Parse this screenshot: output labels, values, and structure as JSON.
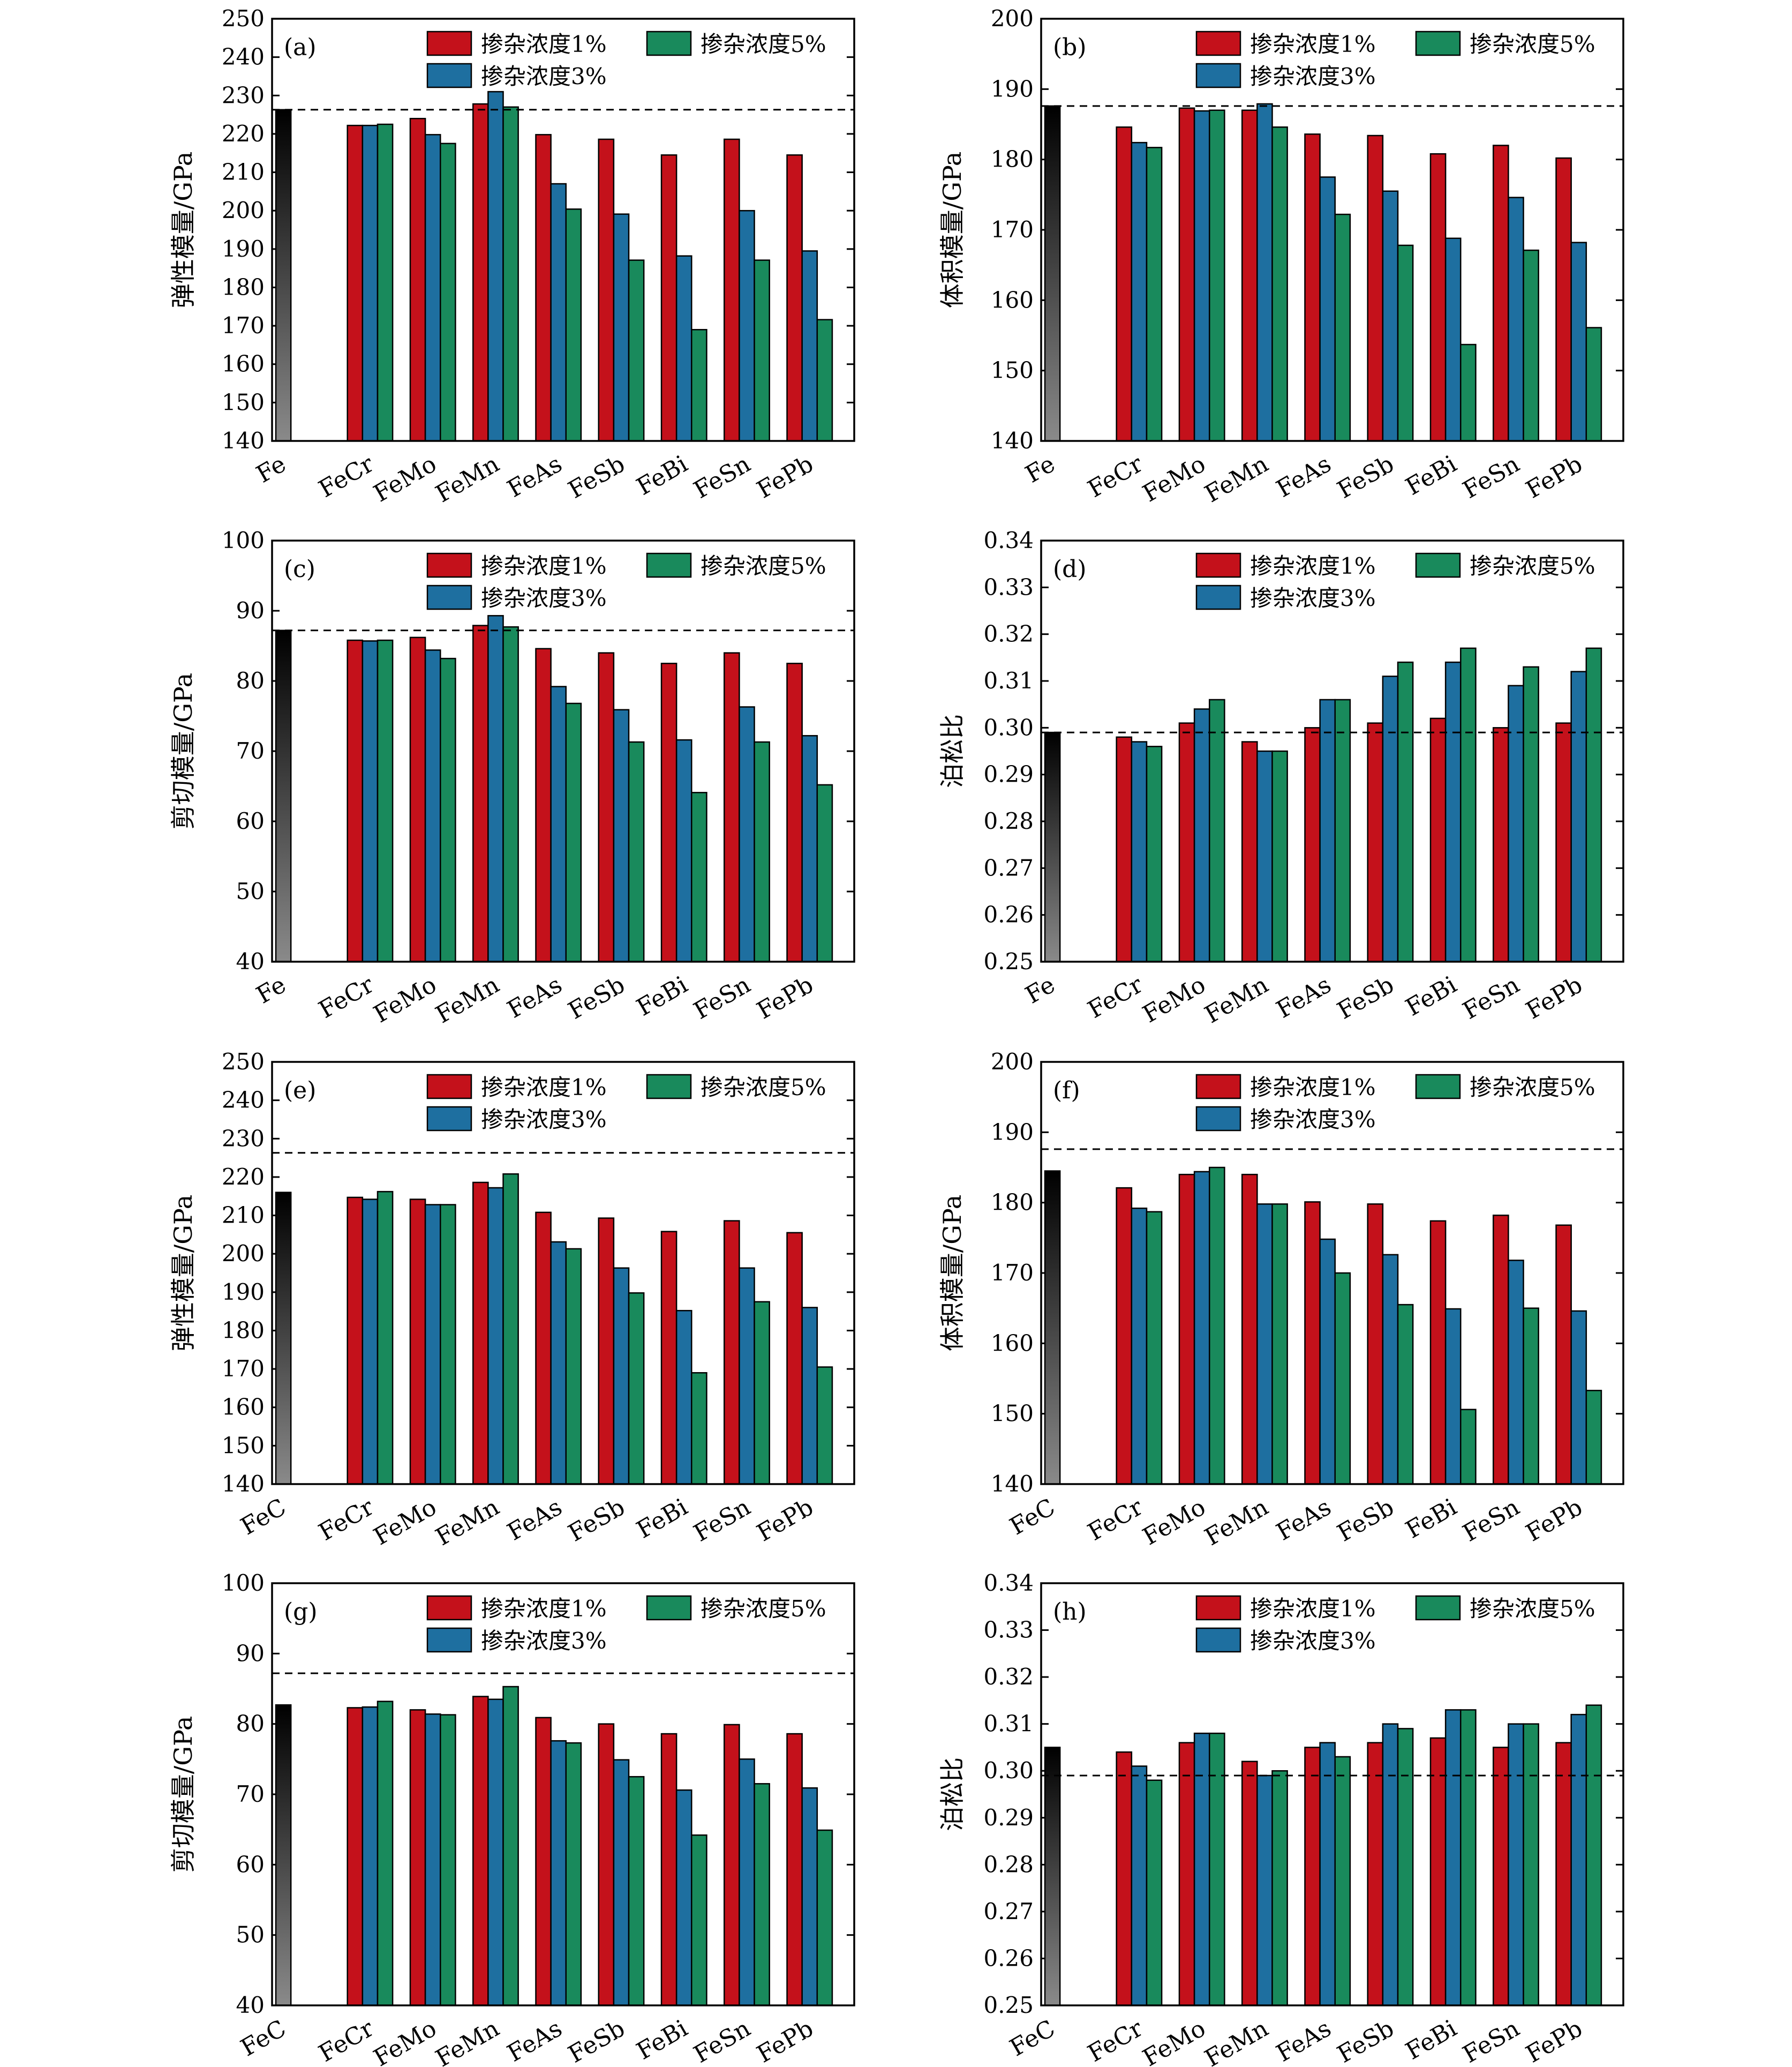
{
  "colors": {
    "c1": "#c4111b",
    "c3": "#1e6fa0",
    "c5": "#198a5c",
    "ref_light": "#8a8a8a",
    "ref_dark": "#000000"
  },
  "chart_data": [
    {
      "type": "bar",
      "panel": "(a)",
      "ylabel": "弹性模量/GPa",
      "ylim": [
        140,
        250
      ],
      "yticks": [
        140,
        150,
        160,
        170,
        180,
        190,
        200,
        210,
        220,
        230,
        240,
        250
      ],
      "decimals": 0,
      "reference": {
        "label": "Fe",
        "value": 226.3
      },
      "refline": 226.3,
      "categories": [
        "FeCr",
        "FeMo",
        "FeMn",
        "FeAs",
        "FeSb",
        "FeBi",
        "FeSn",
        "FePb"
      ],
      "series": [
        {
          "name": "掺杂浓度1%",
          "values": [
            222.2,
            224.0,
            227.8,
            219.8,
            218.6,
            214.5,
            218.6,
            214.5
          ]
        },
        {
          "name": "掺杂浓度3%",
          "values": [
            222.2,
            219.8,
            231.0,
            207.0,
            199.1,
            188.2,
            200.0,
            189.5
          ]
        },
        {
          "name": "掺杂浓度5%",
          "values": [
            222.5,
            217.5,
            227.0,
            200.4,
            187.1,
            169.0,
            187.1,
            171.6
          ]
        }
      ]
    },
    {
      "type": "bar",
      "panel": "(b)",
      "ylabel": "体积模量/GPa",
      "ylim": [
        140,
        200
      ],
      "yticks": [
        140,
        150,
        160,
        170,
        180,
        190,
        200
      ],
      "decimals": 0,
      "reference": {
        "label": "Fe",
        "value": 187.6
      },
      "refline": 187.6,
      "categories": [
        "FeCr",
        "FeMo",
        "FeMn",
        "FeAs",
        "FeSb",
        "FeBi",
        "FeSn",
        "FePb"
      ],
      "series": [
        {
          "name": "掺杂浓度1%",
          "values": [
            184.6,
            187.3,
            187.0,
            183.6,
            183.4,
            180.8,
            182.0,
            180.2
          ]
        },
        {
          "name": "掺杂浓度3%",
          "values": [
            182.4,
            186.9,
            187.9,
            177.5,
            175.5,
            168.8,
            174.6,
            168.2
          ]
        },
        {
          "name": "掺杂浓度5%",
          "values": [
            181.7,
            187.0,
            184.6,
            172.2,
            167.8,
            153.7,
            167.1,
            156.1
          ]
        }
      ]
    },
    {
      "type": "bar",
      "panel": "(c)",
      "ylabel": "剪切模量/GPa",
      "ylim": [
        40,
        100
      ],
      "yticks": [
        40,
        50,
        60,
        70,
        80,
        90,
        100
      ],
      "decimals": 0,
      "reference": {
        "label": "Fe",
        "value": 87.2
      },
      "refline": 87.2,
      "categories": [
        "FeCr",
        "FeMo",
        "FeMn",
        "FeAs",
        "FeSb",
        "FeBi",
        "FeSn",
        "FePb"
      ],
      "series": [
        {
          "name": "掺杂浓度1%",
          "values": [
            85.8,
            86.2,
            87.9,
            84.6,
            84.0,
            82.5,
            84.0,
            82.5
          ]
        },
        {
          "name": "掺杂浓度3%",
          "values": [
            85.7,
            84.4,
            89.3,
            79.2,
            75.9,
            71.6,
            76.3,
            72.2
          ]
        },
        {
          "name": "掺杂浓度5%",
          "values": [
            85.8,
            83.2,
            87.7,
            76.8,
            71.3,
            64.1,
            71.3,
            65.2
          ]
        }
      ]
    },
    {
      "type": "bar",
      "panel": "(d)",
      "ylabel": "泊松比",
      "ylim": [
        0.25,
        0.34
      ],
      "yticks": [
        0.25,
        0.26,
        0.27,
        0.28,
        0.29,
        0.3,
        0.31,
        0.32,
        0.33,
        0.34
      ],
      "decimals": 2,
      "reference": {
        "label": "Fe",
        "value": 0.299
      },
      "refline": 0.299,
      "categories": [
        "FeCr",
        "FeMo",
        "FeMn",
        "FeAs",
        "FeSb",
        "FeBi",
        "FeSn",
        "FePb"
      ],
      "series": [
        {
          "name": "掺杂浓度1%",
          "values": [
            0.298,
            0.301,
            0.297,
            0.3,
            0.301,
            0.302,
            0.3,
            0.301
          ]
        },
        {
          "name": "掺杂浓度3%",
          "values": [
            0.297,
            0.304,
            0.295,
            0.306,
            0.311,
            0.314,
            0.309,
            0.312
          ]
        },
        {
          "name": "掺杂浓度5%",
          "values": [
            0.296,
            0.306,
            0.295,
            0.306,
            0.314,
            0.317,
            0.313,
            0.317
          ]
        }
      ]
    },
    {
      "type": "bar",
      "panel": "(e)",
      "ylabel": "弹性模量/GPa",
      "ylim": [
        140,
        250
      ],
      "yticks": [
        140,
        150,
        160,
        170,
        180,
        190,
        200,
        210,
        220,
        230,
        240,
        250
      ],
      "decimals": 0,
      "reference": {
        "label": "FeC",
        "value": 216.0
      },
      "refline": 226.3,
      "categories": [
        "FeCr",
        "FeMo",
        "FeMn",
        "FeAs",
        "FeSb",
        "FeBi",
        "FeSn",
        "FePb"
      ],
      "series": [
        {
          "name": "掺杂浓度1%",
          "values": [
            214.7,
            214.2,
            218.6,
            210.8,
            209.3,
            205.8,
            208.6,
            205.5
          ]
        },
        {
          "name": "掺杂浓度3%",
          "values": [
            214.2,
            212.8,
            217.2,
            203.1,
            196.3,
            185.2,
            196.3,
            186.0
          ]
        },
        {
          "name": "掺杂浓度5%",
          "values": [
            216.2,
            212.8,
            220.8,
            201.3,
            189.8,
            169.0,
            187.5,
            170.5
          ]
        }
      ]
    },
    {
      "type": "bar",
      "panel": "(f)",
      "ylabel": "体积模量/GPa",
      "ylim": [
        140,
        200
      ],
      "yticks": [
        140,
        150,
        160,
        170,
        180,
        190,
        200
      ],
      "decimals": 0,
      "reference": {
        "label": "FeC",
        "value": 184.5
      },
      "refline": 187.6,
      "categories": [
        "FeCr",
        "FeMo",
        "FeMn",
        "FeAs",
        "FeSb",
        "FeBi",
        "FeSn",
        "FePb"
      ],
      "series": [
        {
          "name": "掺杂浓度1%",
          "values": [
            182.1,
            184.0,
            184.0,
            180.1,
            179.8,
            177.4,
            178.2,
            176.8
          ]
        },
        {
          "name": "掺杂浓度3%",
          "values": [
            179.2,
            184.4,
            179.8,
            174.8,
            172.6,
            164.9,
            171.8,
            164.6
          ]
        },
        {
          "name": "掺杂浓度5%",
          "values": [
            178.7,
            185.0,
            179.8,
            170.0,
            165.5,
            150.6,
            165.0,
            153.3
          ]
        }
      ]
    },
    {
      "type": "bar",
      "panel": "(g)",
      "ylabel": "剪切模量/GPa",
      "ylim": [
        40,
        100
      ],
      "yticks": [
        40,
        50,
        60,
        70,
        80,
        90,
        100
      ],
      "decimals": 0,
      "reference": {
        "label": "FeC",
        "value": 82.7
      },
      "refline": 87.2,
      "categories": [
        "FeCr",
        "FeMo",
        "FeMn",
        "FeAs",
        "FeSb",
        "FeBi",
        "FeSn",
        "FePb"
      ],
      "series": [
        {
          "name": "掺杂浓度1%",
          "values": [
            82.3,
            82.0,
            83.9,
            80.9,
            80.0,
            78.6,
            79.9,
            78.6
          ]
        },
        {
          "name": "掺杂浓度3%",
          "values": [
            82.4,
            81.4,
            83.5,
            77.6,
            74.9,
            70.6,
            75.0,
            70.9
          ]
        },
        {
          "name": "掺杂浓度5%",
          "values": [
            83.2,
            81.3,
            85.3,
            77.3,
            72.5,
            64.2,
            71.5,
            64.9
          ]
        }
      ]
    },
    {
      "type": "bar",
      "panel": "(h)",
      "ylabel": "泊松比",
      "ylim": [
        0.25,
        0.34
      ],
      "yticks": [
        0.25,
        0.26,
        0.27,
        0.28,
        0.29,
        0.3,
        0.31,
        0.32,
        0.33,
        0.34
      ],
      "decimals": 2,
      "reference": {
        "label": "FeC",
        "value": 0.305
      },
      "refline": 0.299,
      "categories": [
        "FeCr",
        "FeMo",
        "FeMn",
        "FeAs",
        "FeSb",
        "FeBi",
        "FeSn",
        "FePb"
      ],
      "series": [
        {
          "name": "掺杂浓度1%",
          "values": [
            0.304,
            0.306,
            0.302,
            0.305,
            0.306,
            0.307,
            0.305,
            0.306
          ]
        },
        {
          "name": "掺杂浓度3%",
          "values": [
            0.301,
            0.308,
            0.299,
            0.306,
            0.31,
            0.313,
            0.31,
            0.312
          ]
        },
        {
          "name": "掺杂浓度5%",
          "values": [
            0.298,
            0.308,
            0.3,
            0.303,
            0.309,
            0.313,
            0.31,
            0.314
          ]
        }
      ]
    }
  ]
}
